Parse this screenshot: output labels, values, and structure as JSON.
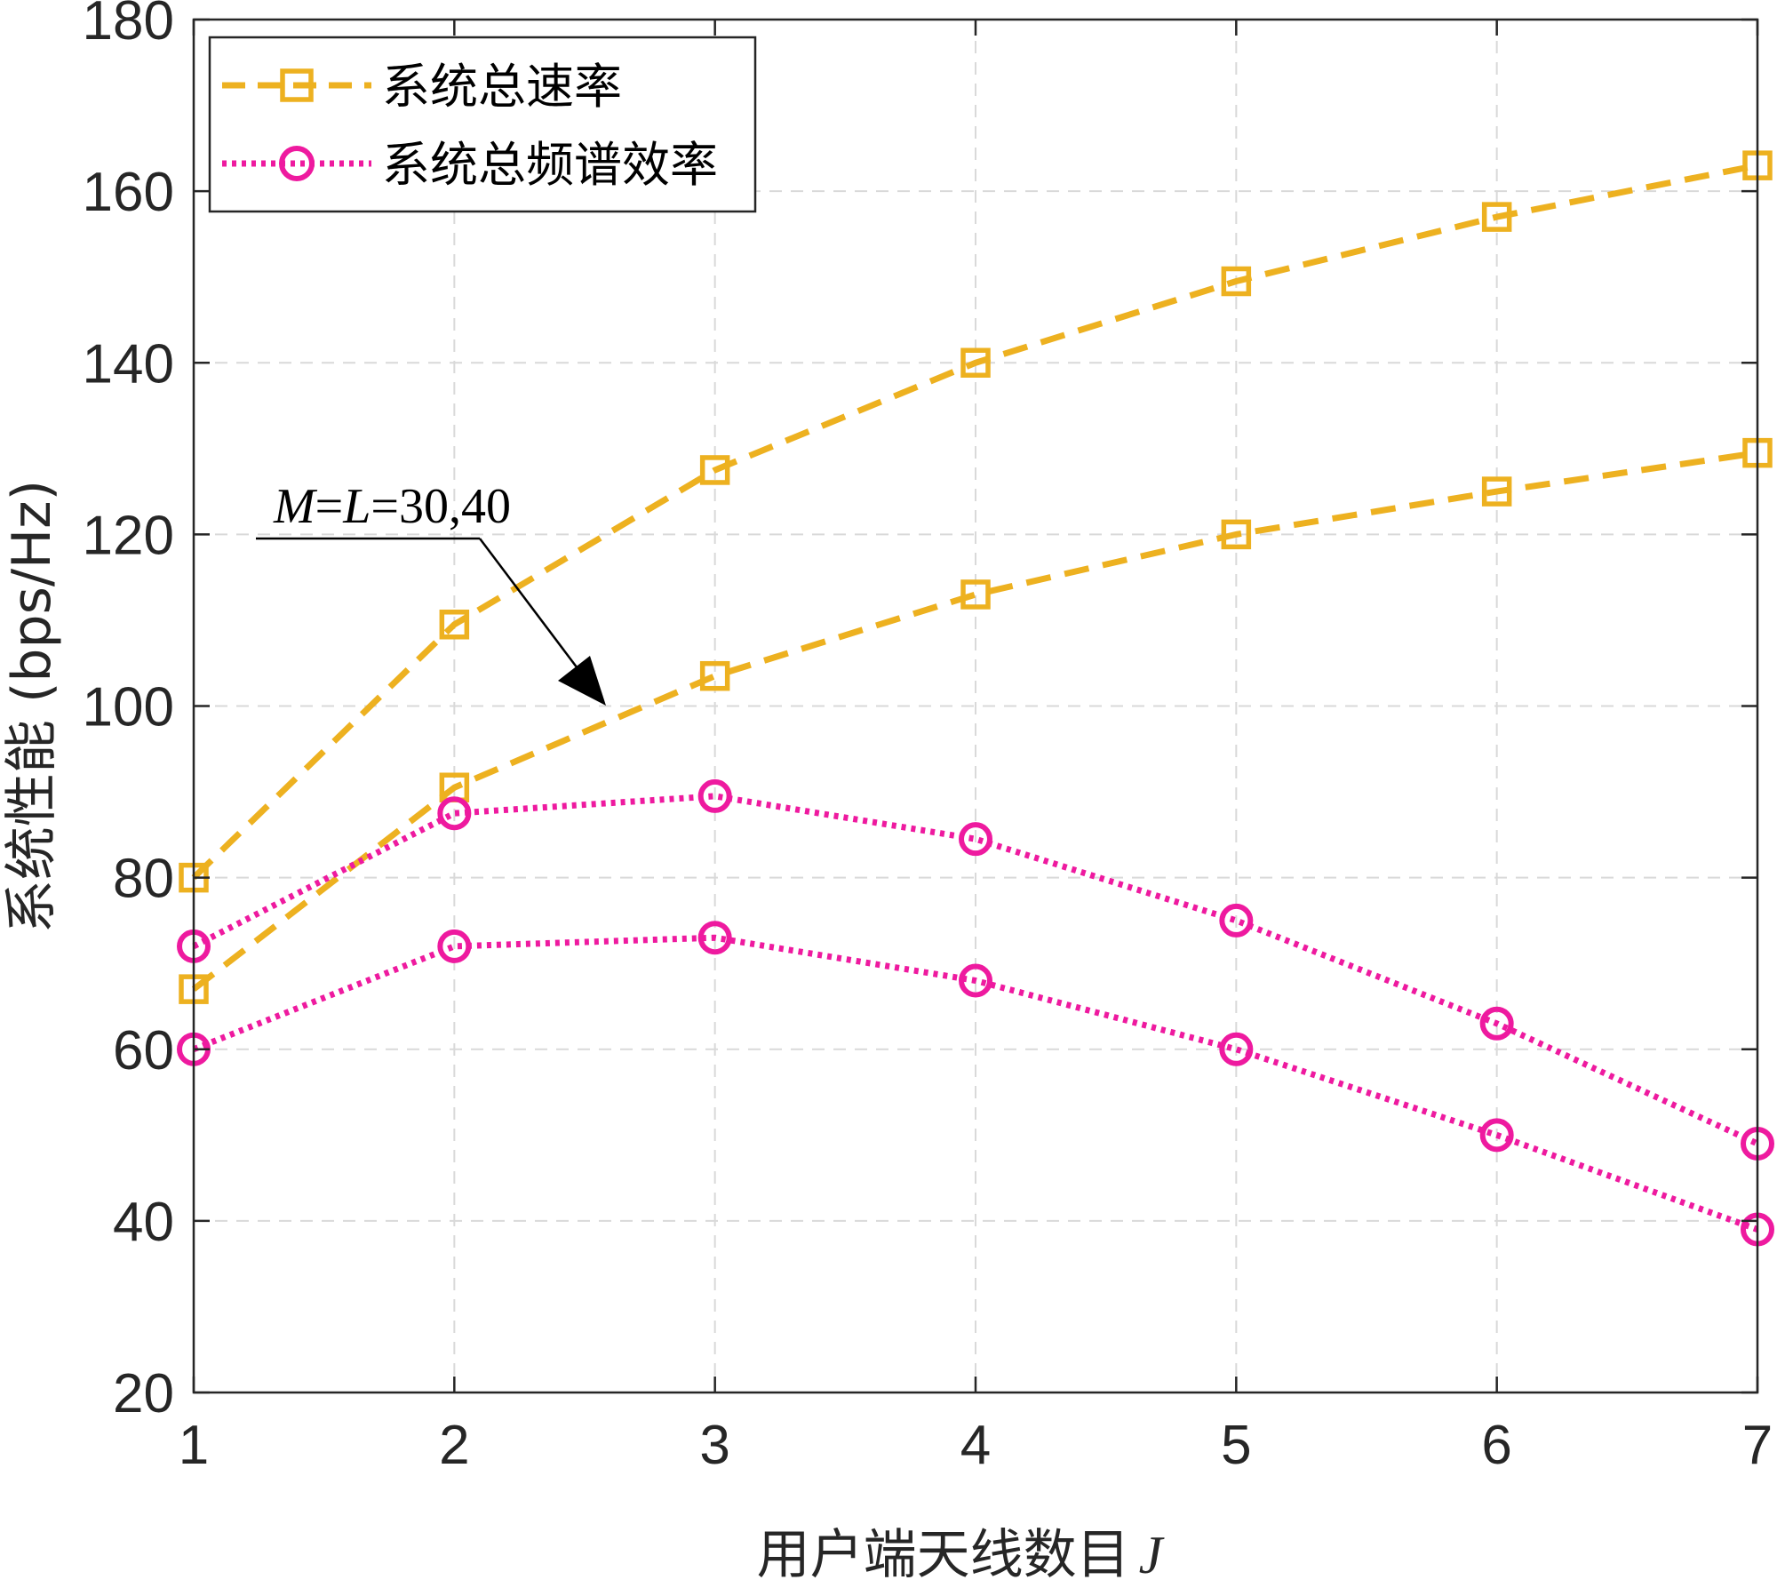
{
  "chart_data": {
    "type": "line",
    "title": "",
    "xlabel": "用户端天线数目",
    "xlabel_var": "J",
    "ylabel": "系统性能 (bps/Hz)",
    "xlim": [
      1,
      7
    ],
    "ylim": [
      20,
      180
    ],
    "xticks": [
      1,
      2,
      3,
      4,
      5,
      6,
      7
    ],
    "yticks": [
      20,
      40,
      60,
      80,
      100,
      120,
      140,
      160,
      180
    ],
    "grid": true,
    "legend_position": "top-left",
    "legend": [
      {
        "label": "系统总速率",
        "color": "#EDB120",
        "line": "dashed",
        "marker": "square"
      },
      {
        "label": "系统总频谱效率",
        "color": "#EE1A9F",
        "line": "dotted",
        "marker": "circle"
      }
    ],
    "series": [
      {
        "group": "系统总速率",
        "color": "#EDB120",
        "line": "dashed",
        "marker": "square",
        "x": [
          1,
          2,
          3,
          4,
          5,
          6,
          7
        ],
        "values": [
          80,
          109.5,
          127.5,
          140,
          149.5,
          157,
          163
        ]
      },
      {
        "group": "系统总速率",
        "color": "#EDB120",
        "line": "dashed",
        "marker": "square",
        "x": [
          1,
          2,
          3,
          4,
          5,
          6,
          7
        ],
        "values": [
          67,
          90.5,
          103.5,
          113,
          120,
          125,
          129.5
        ]
      },
      {
        "group": "系统总频谱效率",
        "color": "#EE1A9F",
        "line": "dotted",
        "marker": "circle",
        "x": [
          1,
          2,
          3,
          4,
          5,
          6,
          7
        ],
        "values": [
          72,
          87.5,
          89.5,
          84.5,
          75,
          63,
          49
        ]
      },
      {
        "group": "系统总频谱效率",
        "color": "#EE1A9F",
        "line": "dotted",
        "marker": "circle",
        "x": [
          1,
          2,
          3,
          4,
          5,
          6,
          7
        ],
        "values": [
          60,
          72,
          73,
          68,
          60,
          50,
          39
        ]
      }
    ],
    "annotation": {
      "text_M": "M",
      "text_eq1": "=",
      "text_L": "L",
      "text_eq2": "=30,40"
    }
  }
}
